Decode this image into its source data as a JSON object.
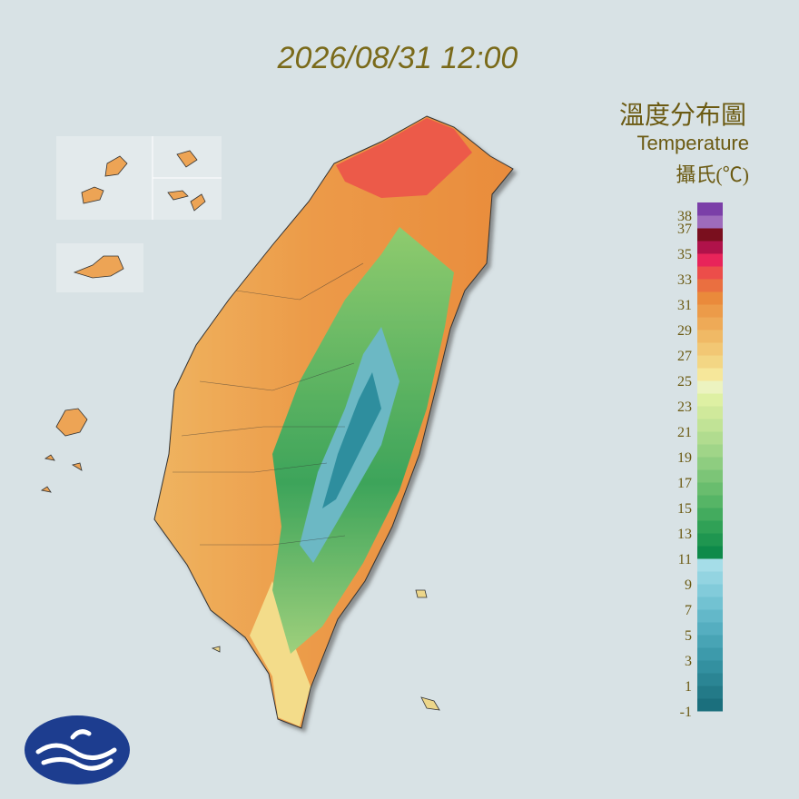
{
  "header": {
    "time": "2026/08/31 12:00"
  },
  "legend": {
    "title": "溫度分布圖",
    "subtitle": "Temperature",
    "unit": "攝氏(℃)",
    "range": [
      -1,
      39
    ],
    "ticks": [
      38,
      37,
      35,
      33,
      31,
      29,
      27,
      25,
      23,
      21,
      19,
      17,
      15,
      13,
      11,
      9,
      7,
      5,
      3,
      1,
      -1
    ],
    "colors": [
      "#1b6f7d",
      "#237a88",
      "#2b8594",
      "#3390a0",
      "#3d9aab",
      "#48a4b5",
      "#55aec0",
      "#63b8c9",
      "#72c2d2",
      "#82cbda",
      "#93d4e1",
      "#a5dde8",
      "#0e8a4a",
      "#1f9650",
      "#30a156",
      "#43ab5e",
      "#56b566",
      "#69bd6e",
      "#7cc577",
      "#8ecd80",
      "#a0d588",
      "#b1dc8f",
      "#c1e396",
      "#d0e99b",
      "#def0a3",
      "#ecf3c0",
      "#f6e79a",
      "#f3d684",
      "#f2c774",
      "#f0b965",
      "#eeaa57",
      "#ec9b49",
      "#ea8a3b",
      "#ea6f40",
      "#ec4d4a",
      "#e8245a",
      "#b0124a",
      "#7a0f1e",
      "#9e6bbc",
      "#7b3fa8"
    ]
  }
}
